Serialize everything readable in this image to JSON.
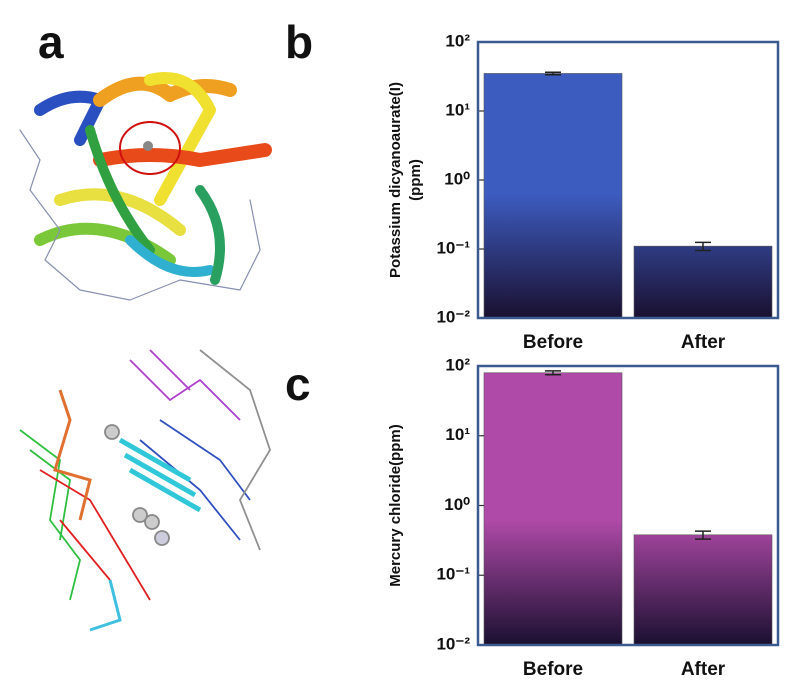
{
  "panel_labels": [
    "a",
    "b",
    "c"
  ],
  "chart_data": [
    {
      "type": "bar",
      "log_scale": true,
      "ylabel": [
        "Potassium dicyanoaurate(I)",
        "(ppm)"
      ],
      "categories": [
        "Before",
        "After"
      ],
      "values": [
        35,
        0.11
      ],
      "errors": [
        1.5,
        0.015
      ],
      "color": "#3d5cc0",
      "ylim": [
        0.01,
        100
      ],
      "yticks": [
        {
          "value": 100,
          "label": "10²"
        },
        {
          "value": 10,
          "label": "10¹"
        },
        {
          "value": 1,
          "label": "10⁰"
        },
        {
          "value": 0.1,
          "label": "10⁻¹"
        },
        {
          "value": 0.01,
          "label": "10⁻²"
        }
      ]
    },
    {
      "type": "bar",
      "log_scale": true,
      "ylabel": [
        "Mercury chloride(ppm)"
      ],
      "categories": [
        "Before",
        "After"
      ],
      "values": [
        80,
        0.38
      ],
      "errors": [
        5,
        0.05
      ],
      "color": "#b04aa8",
      "ylim": [
        0.01,
        100
      ],
      "yticks": [
        {
          "value": 100,
          "label": "10²"
        },
        {
          "value": 10,
          "label": "10¹"
        },
        {
          "value": 1,
          "label": "10⁰"
        },
        {
          "value": 0.1,
          "label": "10⁻¹"
        },
        {
          "value": 0.01,
          "label": "10⁻²"
        }
      ]
    }
  ]
}
